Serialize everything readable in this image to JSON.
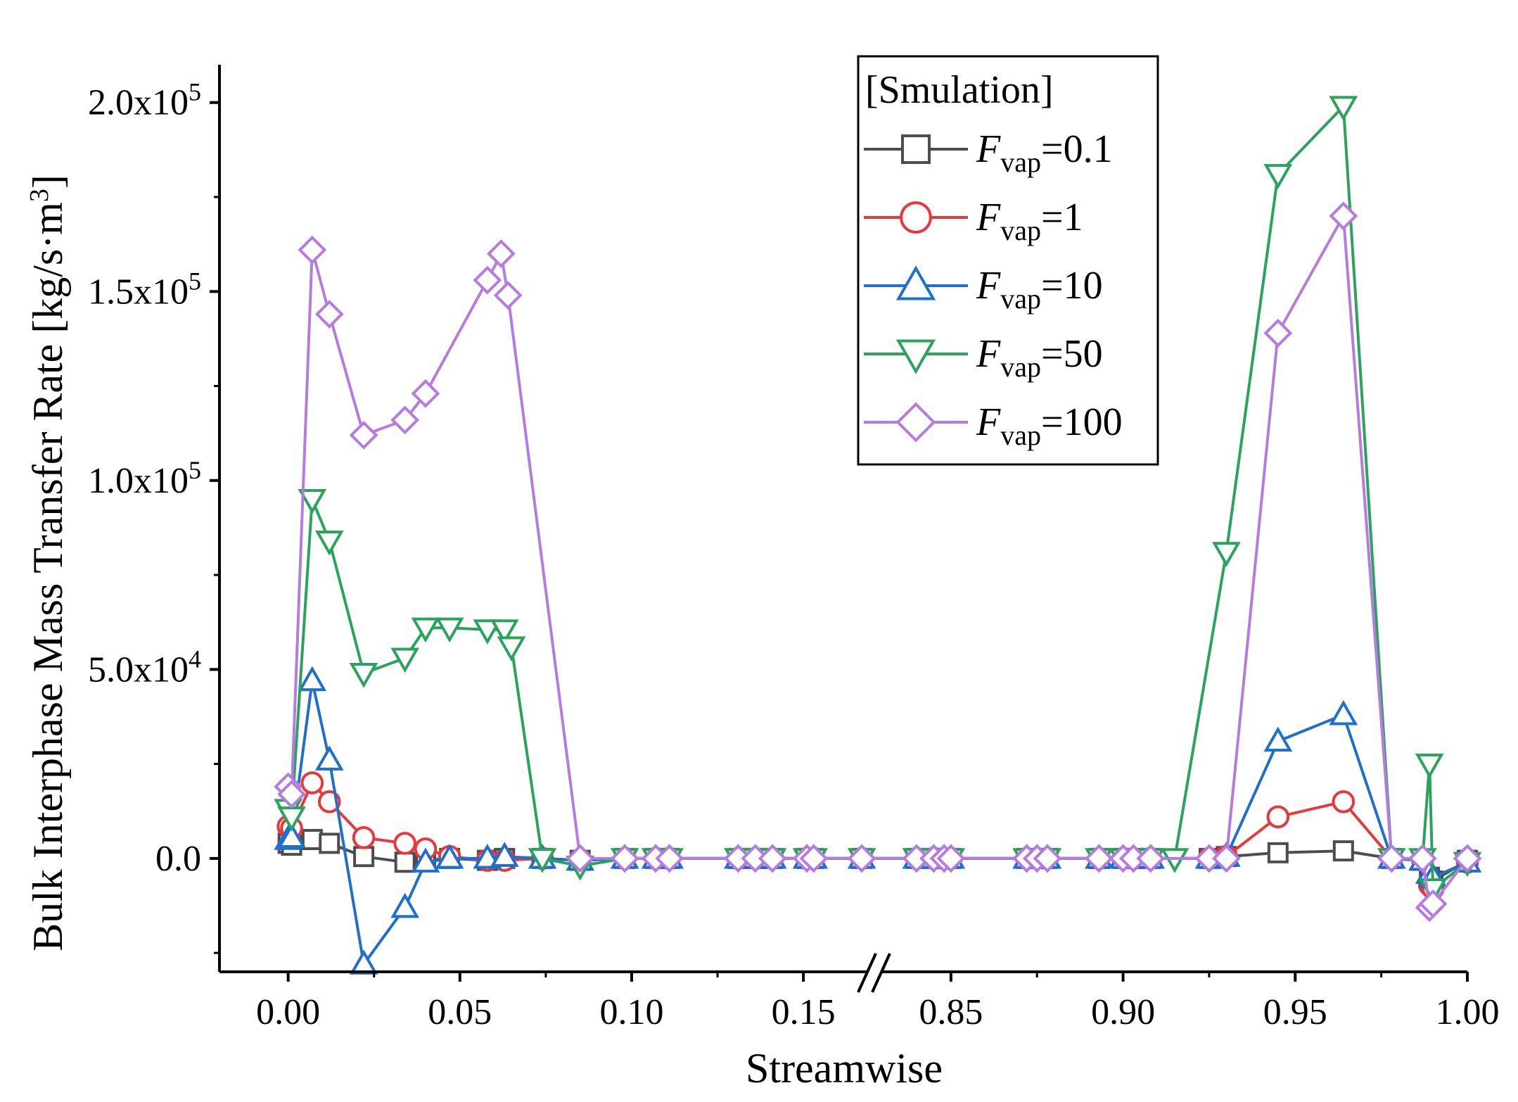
{
  "chart_data": {
    "type": "line",
    "xlabel": "Streamwise",
    "ylabel": "Bulk Interphase Mass Transfer Rate [kg/s·m³]",
    "ylabel_main": "Bulk Interphase Mass Transfer Rate [kg/s·m",
    "ylabel_sup": "3",
    "ylabel_close": "]",
    "axis_break": true,
    "x_segments": [
      [
        -0.02,
        0.168
      ],
      [
        0.83,
        1.0
      ]
    ],
    "ylim": [
      -30000,
      210000
    ],
    "x_ticks": [
      {
        "value": 0.0,
        "label": "0.00"
      },
      {
        "value": 0.05,
        "label": "0.05"
      },
      {
        "value": 0.1,
        "label": "0.10"
      },
      {
        "value": 0.15,
        "label": "0.15"
      },
      {
        "value": 0.85,
        "label": "0.85"
      },
      {
        "value": 0.9,
        "label": "0.90"
      },
      {
        "value": 0.95,
        "label": "0.95"
      },
      {
        "value": 1.0,
        "label": "1.00"
      }
    ],
    "y_ticks": [
      {
        "value": 0,
        "base": "0.0",
        "exp": ""
      },
      {
        "value": 50000,
        "base": "5.0x10",
        "exp": "4"
      },
      {
        "value": 100000,
        "base": "1.0x10",
        "exp": "5"
      },
      {
        "value": 150000,
        "base": "1.5x10",
        "exp": "5"
      },
      {
        "value": 200000,
        "base": "2.0x10",
        "exp": "5"
      }
    ],
    "y_minor_ticks": [
      -25000,
      25000,
      75000,
      125000,
      175000
    ],
    "legend": {
      "title": "[Smulation]",
      "position": "top-right"
    },
    "series": [
      {
        "name": "Fvap=0.1",
        "label_prefix": "F",
        "label_sub": "vap",
        "label_value": "=0.1",
        "marker": "square",
        "color": "#4d4d4d",
        "x": [
          0.0,
          0.001,
          0.007,
          0.012,
          0.022,
          0.034,
          0.04,
          0.047,
          0.058,
          0.063,
          0.074,
          0.085,
          0.098,
          0.107,
          0.111,
          0.131,
          0.136,
          0.141,
          0.151,
          0.153,
          0.167,
          0.84,
          0.845,
          0.848,
          0.85,
          0.872,
          0.875,
          0.878,
          0.893,
          0.9,
          0.903,
          0.908,
          0.925,
          0.93,
          0.945,
          0.964,
          0.978,
          0.987,
          0.989,
          0.99,
          1.0
        ],
        "y": [
          4000,
          3500,
          5000,
          4000,
          500,
          -1000,
          -500,
          0,
          -500,
          0,
          0,
          -500,
          0,
          0,
          0,
          0,
          0,
          0,
          0,
          0,
          0,
          0,
          0,
          0,
          0,
          0,
          0,
          0,
          0,
          0,
          0,
          0,
          0,
          500,
          1500,
          2000,
          0,
          -500,
          -5000,
          -6000,
          -500
        ]
      },
      {
        "name": "Fvap=1",
        "label_prefix": "F",
        "label_sub": "vap",
        "label_value": "=1",
        "marker": "circle",
        "color": "#e8383d",
        "x": [
          0.0,
          0.001,
          0.007,
          0.012,
          0.022,
          0.034,
          0.04,
          0.047,
          0.058,
          0.063,
          0.074,
          0.085,
          0.098,
          0.107,
          0.111,
          0.131,
          0.136,
          0.141,
          0.151,
          0.153,
          0.167,
          0.84,
          0.845,
          0.848,
          0.85,
          0.872,
          0.875,
          0.878,
          0.893,
          0.9,
          0.903,
          0.908,
          0.925,
          0.93,
          0.945,
          0.964,
          0.978,
          0.987,
          0.989,
          0.99,
          1.0
        ],
        "y": [
          8500,
          8000,
          20000,
          15000,
          5500,
          4000,
          2500,
          500,
          -500,
          -500,
          0,
          -500,
          0,
          0,
          0,
          0,
          0,
          0,
          0,
          0,
          0,
          0,
          0,
          0,
          0,
          0,
          0,
          0,
          0,
          0,
          0,
          0,
          0,
          500,
          11000,
          15000,
          0,
          -500,
          -7000,
          -8000,
          -1000
        ]
      },
      {
        "name": "Fvap=10",
        "label_prefix": "F",
        "label_sub": "vap",
        "label_value": "=10",
        "marker": "triangle-up",
        "color": "#1f6fcf",
        "x": [
          0.0,
          0.001,
          0.007,
          0.012,
          0.022,
          0.034,
          0.04,
          0.047,
          0.058,
          0.063,
          0.074,
          0.085,
          0.098,
          0.107,
          0.111,
          0.131,
          0.136,
          0.141,
          0.151,
          0.153,
          0.167,
          0.84,
          0.845,
          0.848,
          0.85,
          0.872,
          0.875,
          0.878,
          0.893,
          0.9,
          0.903,
          0.908,
          0.925,
          0.93,
          0.945,
          0.964,
          0.978,
          0.987,
          0.989,
          0.99,
          1.0
        ],
        "y": [
          5000,
          5500,
          47000,
          26000,
          -28000,
          -13000,
          -1000,
          0,
          0,
          500,
          0,
          -500,
          0,
          0,
          0,
          0,
          0,
          0,
          0,
          0,
          0,
          0,
          0,
          0,
          0,
          0,
          0,
          0,
          0,
          0,
          0,
          0,
          0,
          500,
          31000,
          38000,
          0,
          -500,
          -4000,
          -5000,
          -1000
        ]
      },
      {
        "name": "Fvap=50",
        "label_prefix": "F",
        "label_sub": "vap",
        "label_value": "=50",
        "marker": "triangle-down",
        "color": "#2aa35c",
        "x": [
          0.0,
          0.001,
          0.007,
          0.012,
          0.022,
          0.034,
          0.04,
          0.047,
          0.058,
          0.063,
          0.065,
          0.074,
          0.085,
          0.098,
          0.107,
          0.111,
          0.131,
          0.136,
          0.141,
          0.151,
          0.153,
          0.167,
          0.84,
          0.845,
          0.848,
          0.85,
          0.872,
          0.875,
          0.878,
          0.893,
          0.9,
          0.903,
          0.908,
          0.915,
          0.93,
          0.945,
          0.964,
          0.978,
          0.987,
          0.989,
          0.99,
          1.0
        ],
        "y": [
          13000,
          11000,
          95000,
          84000,
          49000,
          53000,
          61000,
          61000,
          60500,
          60500,
          56000,
          0,
          -2000,
          0,
          0,
          0,
          0,
          0,
          0,
          0,
          0,
          0,
          0,
          0,
          0,
          0,
          0,
          0,
          0,
          0,
          0,
          0,
          0,
          0,
          81000,
          181000,
          199000,
          0,
          0,
          25000,
          -8000,
          -1000
        ]
      },
      {
        "name": "Fvap=100",
        "label_prefix": "F",
        "label_sub": "vap",
        "label_value": "=100",
        "marker": "diamond",
        "color": "#b57be0",
        "x": [
          0.0,
          0.001,
          0.007,
          0.012,
          0.022,
          0.034,
          0.04,
          0.058,
          0.062,
          0.064,
          0.085,
          0.098,
          0.107,
          0.111,
          0.131,
          0.136,
          0.141,
          0.151,
          0.153,
          0.167,
          0.84,
          0.845,
          0.848,
          0.85,
          0.872,
          0.875,
          0.878,
          0.893,
          0.9,
          0.903,
          0.908,
          0.925,
          0.93,
          0.945,
          0.964,
          0.978,
          0.987,
          0.989,
          0.99,
          1.0
        ],
        "y": [
          19000,
          17000,
          161000,
          144000,
          112000,
          116000,
          123000,
          153000,
          160000,
          149000,
          0,
          0,
          0,
          0,
          0,
          0,
          0,
          0,
          0,
          0,
          0,
          0,
          0,
          0,
          0,
          0,
          0,
          0,
          0,
          0,
          0,
          0,
          0,
          139000,
          170000,
          0,
          0,
          -13000,
          -12000,
          0
        ]
      }
    ]
  }
}
